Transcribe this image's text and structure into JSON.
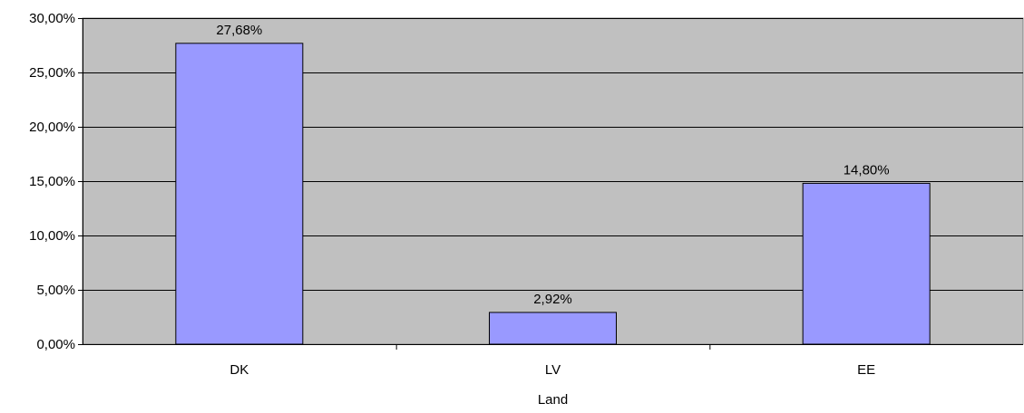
{
  "chart_data": {
    "type": "bar",
    "title": "",
    "xlabel": "Land",
    "ylabel": "",
    "categories": [
      "DK",
      "LV",
      "EE"
    ],
    "values": [
      27.68,
      2.92,
      14.8
    ],
    "data_labels": [
      "27,68%",
      "2,92%",
      "14,80%"
    ],
    "ylim": [
      0,
      30
    ],
    "yticks": [
      0,
      5,
      10,
      15,
      20,
      25,
      30
    ],
    "ytick_labels": [
      "0,00%",
      "5,00%",
      "10,00%",
      "15,00%",
      "20,00%",
      "25,00%",
      "30,00%"
    ],
    "grid": true,
    "legend": "none",
    "colors": {
      "plot_background": "#c0c0c0",
      "bar_fill": "#9999ff",
      "bar_stroke": "#000000",
      "gridline": "#000000"
    }
  }
}
